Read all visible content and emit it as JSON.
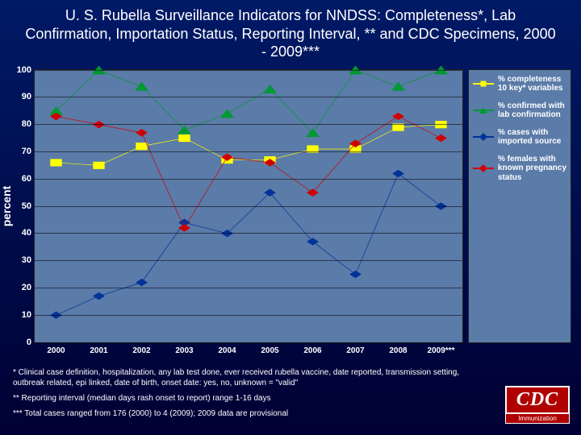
{
  "title": "U. S. Rubella Surveillance Indicators for NNDSS: Completeness*, Lab Confirmation, Importation Status, Reporting Interval, ** and CDC Specimens, 2000 - 2009***",
  "ylabel": "percent",
  "chart": {
    "type": "line",
    "background_color": "#5b7ba8",
    "grid_color": "#000000",
    "ylim": [
      0,
      100
    ],
    "ytick_step": 10,
    "categories": [
      "2000",
      "2001",
      "2002",
      "2003",
      "2004",
      "2005",
      "2006",
      "2007",
      "2008",
      "2009***"
    ],
    "series": [
      {
        "name": "% completeness 10 key* variables",
        "color": "#ffff00",
        "marker": "square",
        "marker_size": 7,
        "line_width": 2,
        "values": [
          66,
          65,
          72,
          75,
          67,
          67,
          71,
          71,
          79,
          80
        ]
      },
      {
        "name": "% confirmed with lab confirmation",
        "color": "#009933",
        "marker": "triangle",
        "marker_size": 8,
        "line_width": 2,
        "values": [
          85,
          100,
          94,
          78,
          84,
          93,
          77,
          100,
          94,
          100
        ]
      },
      {
        "name": "% cases with imported source",
        "color": "#003399",
        "marker": "diamond",
        "marker_size": 7,
        "line_width": 2,
        "values": [
          10,
          17,
          22,
          44,
          40,
          55,
          37,
          25,
          62,
          50
        ]
      },
      {
        "name": "% females with known pregnancy status",
        "color": "#d00000",
        "marker": "diamond",
        "marker_size": 7,
        "line_width": 2,
        "values": [
          83,
          80,
          77,
          42,
          68,
          66,
          55,
          73,
          83,
          75
        ]
      }
    ],
    "legend_position": "right",
    "tick_fontsize": 11
  },
  "footnotes": [
    "* Clinical case definition, hospitalization, any lab test done, ever received rubella vaccine, date reported, transmission setting, outbreak related, epi linked, date of birth, onset date: yes, no, unknown = \"valid\"",
    "** Reporting interval (median days rash onset to report) range 1-16 days",
    "*** Total cases ranged from 176 (2000) to 4 (2009); 2009 data are provisional"
  ],
  "logo": {
    "text": "CDC",
    "sub": "Immunization",
    "bg": "#b00000"
  }
}
